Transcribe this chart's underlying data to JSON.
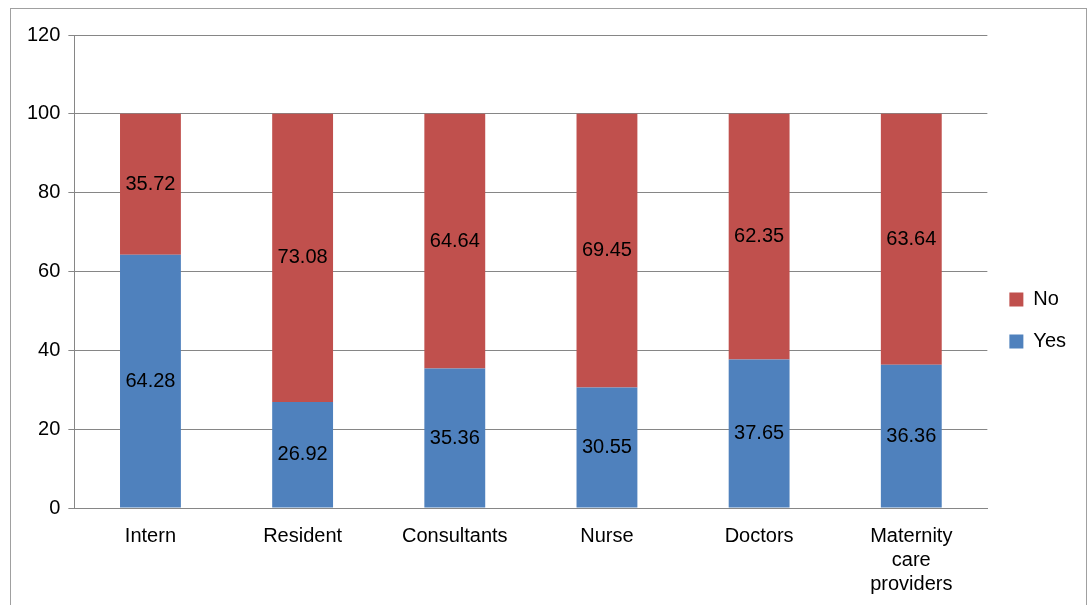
{
  "chart_data": {
    "type": "bar",
    "stacked": true,
    "categories": [
      "Intern",
      "Resident",
      "Consultants",
      "Nurse",
      "Doctors",
      "Maternity care providers"
    ],
    "series": [
      {
        "name": "Yes",
        "color": "#4f81bd",
        "values": [
          64.28,
          26.92,
          35.36,
          30.55,
          37.65,
          36.36
        ]
      },
      {
        "name": "No",
        "color": "#c0504d",
        "values": [
          35.72,
          73.08,
          64.64,
          69.45,
          62.35,
          63.64
        ]
      }
    ],
    "ylim": [
      0,
      120
    ],
    "yticks": [
      0,
      20,
      40,
      60,
      80,
      100,
      120
    ],
    "grid": "y",
    "legend": "right",
    "data_labels": true
  }
}
